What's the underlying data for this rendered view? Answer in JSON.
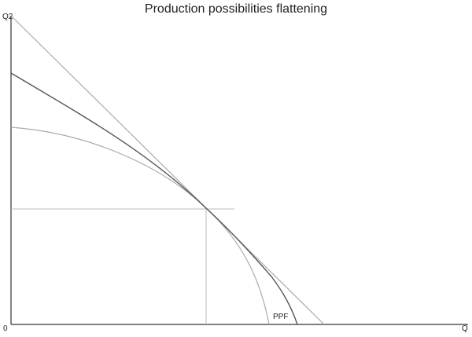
{
  "title": "Production possibilities flattening",
  "axes": {
    "y_label": "Q2",
    "x_label": "Q",
    "origin": "0"
  },
  "curve_label": "PPF"
}
